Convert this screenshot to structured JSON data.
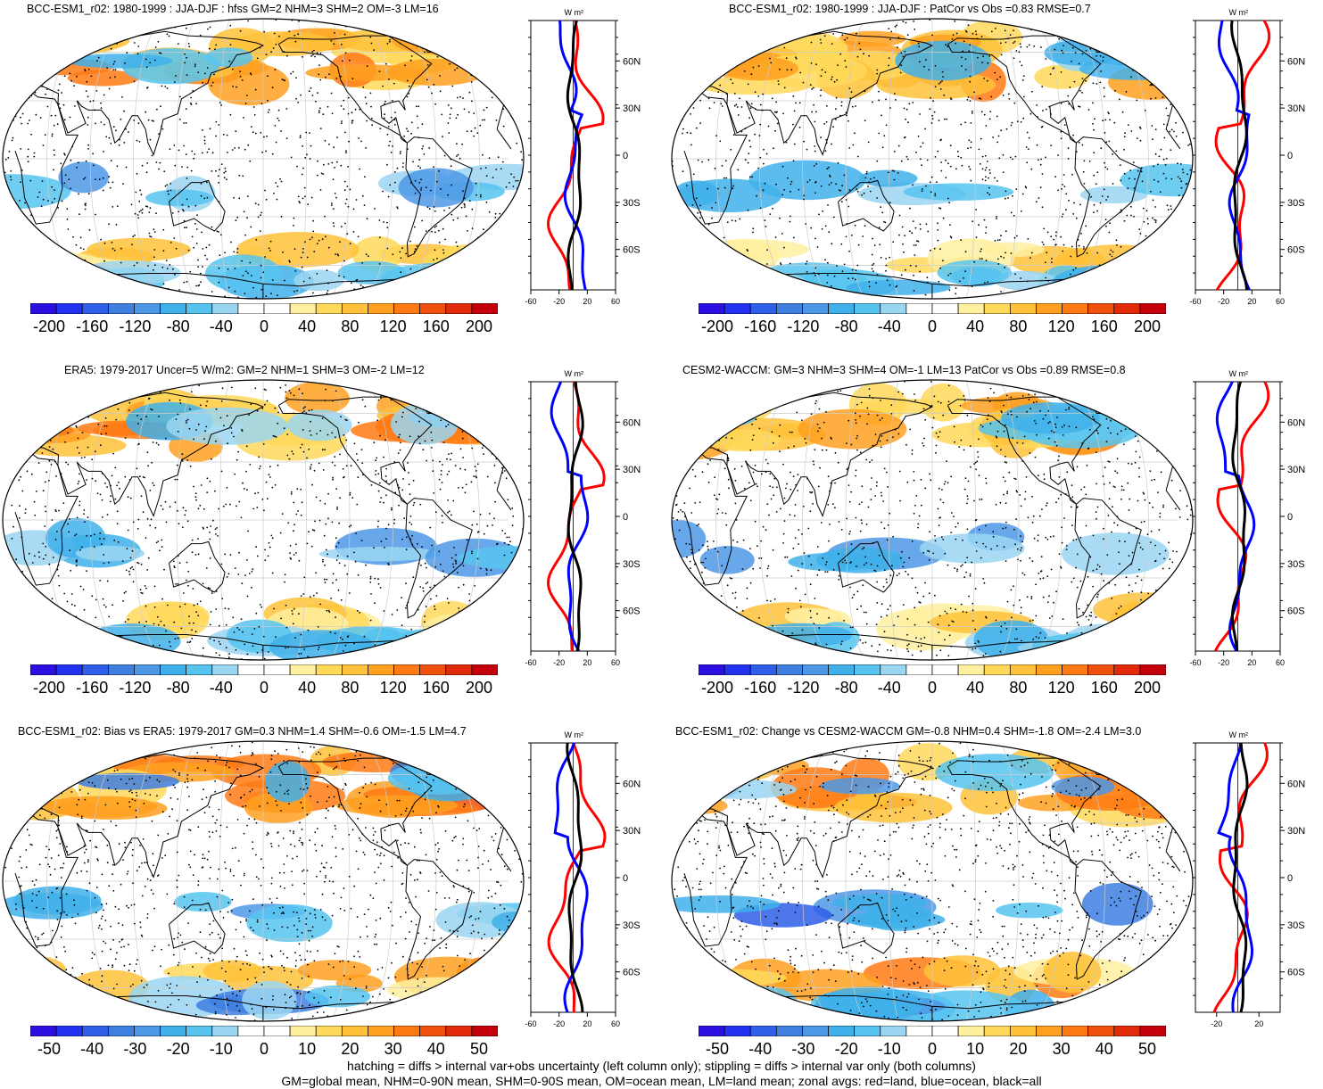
{
  "panels": [
    {
      "title": "BCC-ESM1_r02: 1980-1999 : JJA-DJF : hfss GM=2 NHM=3 SHM=2 OM=-3 LM=16",
      "colorbar_labels": [
        "-200",
        "-160",
        "-120",
        "-80",
        "-40",
        "0",
        "40",
        "80",
        "120",
        "160",
        "200"
      ],
      "zonal_xticks": [
        "-60",
        "-20",
        "20",
        "60"
      ],
      "zonal_lat_ticks": [
        "60N",
        "30N",
        "0",
        "30S",
        "60S"
      ]
    },
    {
      "title": "BCC-ESM1_r02: 1980-1999 : JJA-DJF : PatCor vs Obs =0.83 RMSE=0.7",
      "colorbar_labels": [
        "-200",
        "-160",
        "-120",
        "-80",
        "-40",
        "0",
        "40",
        "80",
        "120",
        "160",
        "200"
      ],
      "zonal_xticks": [
        "-60",
        "-20",
        "20",
        "60"
      ],
      "zonal_lat_ticks": [
        "60N",
        "30N",
        "0",
        "30S",
        "60S"
      ]
    },
    {
      "title": "ERA5: 1979-2017 Uncer=5 W/m2: GM=2 NHM=1 SHM=3 OM=-2 LM=12",
      "colorbar_labels": [
        "-200",
        "-160",
        "-120",
        "-80",
        "-40",
        "0",
        "40",
        "80",
        "120",
        "160",
        "200"
      ],
      "zonal_xticks": [
        "-60",
        "-20",
        "20",
        "60"
      ],
      "zonal_lat_ticks": [
        "60N",
        "30N",
        "0",
        "30S",
        "60S"
      ]
    },
    {
      "title": "CESM2-WACCM: GM=3 NHM=3 SHM=4 OM=-1 LM=13 PatCor vs Obs =0.89 RMSE=0.8",
      "colorbar_labels": [
        "-200",
        "-160",
        "-120",
        "-80",
        "-40",
        "0",
        "40",
        "80",
        "120",
        "160",
        "200"
      ],
      "zonal_xticks": [
        "-60",
        "-20",
        "20",
        "60"
      ],
      "zonal_lat_ticks": [
        "60N",
        "30N",
        "0",
        "30S",
        "60S"
      ]
    },
    {
      "title": "BCC-ESM1_r02: Bias vs ERA5: 1979-2017 GM=0.3 NHM=1.4 SHM=-0.6 OM=-1.5 LM=4.7",
      "colorbar_labels": [
        "-50",
        "-40",
        "-30",
        "-20",
        "-10",
        "0",
        "10",
        "20",
        "30",
        "40",
        "50"
      ],
      "zonal_xticks": [
        "-60",
        "-20",
        "20",
        "60"
      ],
      "zonal_lat_ticks": [
        "60N",
        "30N",
        "0",
        "30S",
        "60S"
      ]
    },
    {
      "title": "BCC-ESM1_r02: Change vs CESM2-WACCM GM=-0.8 NHM=0.4 SHM=-1.8 OM=-2.4 LM=3.0",
      "colorbar_labels": [
        "-50",
        "-40",
        "-30",
        "-20",
        "-10",
        "0",
        "10",
        "20",
        "30",
        "40",
        "50"
      ],
      "zonal_xticks": [
        "-20",
        "20"
      ],
      "zonal_lat_ticks": [
        "60N",
        "30N",
        "0",
        "30S",
        "60S"
      ]
    }
  ],
  "zonal_unit": "W m²",
  "colors": {
    "scale": [
      "#2a0fe0",
      "#2232f0",
      "#2f5ee8",
      "#3f7fe0",
      "#4c98e6",
      "#3fb0ea",
      "#57c4f0",
      "#9ad6f2",
      "#ffffff",
      "#ffffff",
      "#fff0a0",
      "#ffd95a",
      "#ffc23a",
      "#ffa020",
      "#ff7a14",
      "#f0500e",
      "#e02a0a",
      "#c4000a"
    ],
    "land_line": "#ff0000",
    "ocean_line": "#0000ff",
    "all_line": "#000000"
  },
  "footer": {
    "line1": "hatching = diffs > internal var+obs uncertainty (left column only); stippling = diffs > internal var only (both columns)",
    "line2": "GM=global mean, NHM=0-90N mean, SHM=0-90S mean, OM=ocean mean, LM=land mean; zonal avgs: red=land, blue=ocean, black=all"
  }
}
